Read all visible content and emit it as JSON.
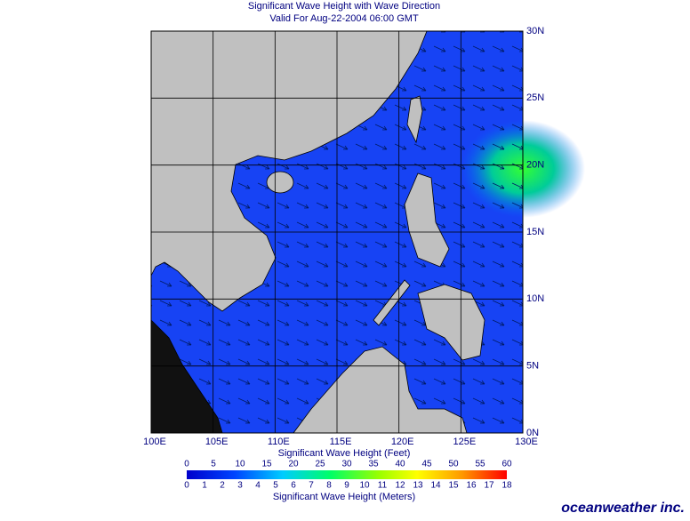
{
  "header": {
    "title": "Significant Wave Height with Wave Direction",
    "subtitle": "Valid For Aug-22-2004 06:00 GMT"
  },
  "map": {
    "lon_ticks": [
      {
        "value": 100,
        "label": "100E"
      },
      {
        "value": 105,
        "label": "105E"
      },
      {
        "value": 110,
        "label": "110E"
      },
      {
        "value": 115,
        "label": "115E"
      },
      {
        "value": 120,
        "label": "120E"
      },
      {
        "value": 125,
        "label": "125E"
      },
      {
        "value": 130,
        "label": "130E"
      }
    ],
    "lat_ticks": [
      {
        "value": 0,
        "label": "0N"
      },
      {
        "value": 5,
        "label": "5N"
      },
      {
        "value": 10,
        "label": "10N"
      },
      {
        "value": 15,
        "label": "15N"
      },
      {
        "value": 20,
        "label": "20N"
      },
      {
        "value": 25,
        "label": "25N"
      },
      {
        "value": 30,
        "label": "30N"
      }
    ]
  },
  "colorbar": {
    "feet_caption": "Significant Wave Height (Feet)",
    "feet_ticks": [
      0,
      5,
      10,
      15,
      20,
      25,
      30,
      35,
      40,
      45,
      50,
      55,
      60
    ],
    "meters_caption": "Significant Wave Height (Meters)",
    "meters_ticks": [
      0,
      1,
      2,
      3,
      4,
      5,
      6,
      7,
      8,
      9,
      10,
      11,
      12,
      13,
      14,
      15,
      16,
      17,
      18
    ]
  },
  "brand": "oceanweather inc."
}
